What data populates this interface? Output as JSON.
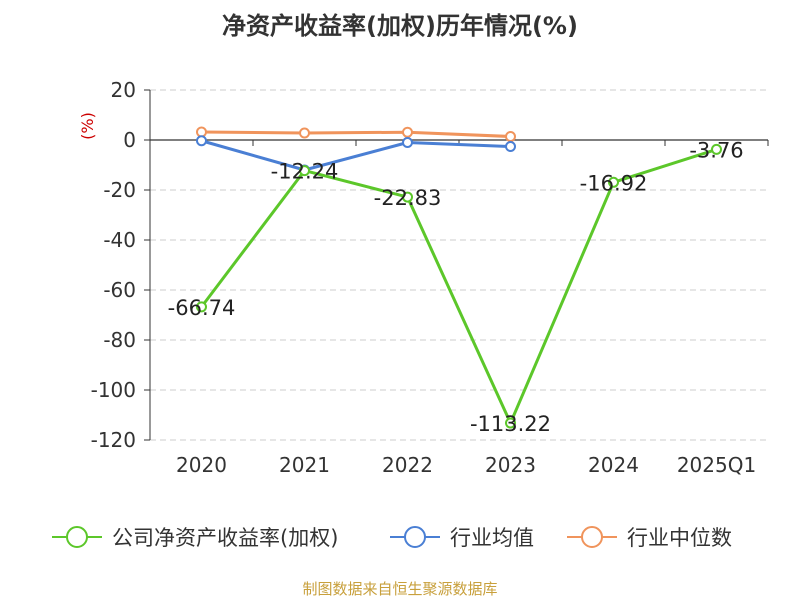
{
  "chart_data": {
    "type": "line",
    "title": "净资产收益率(加权)历年情况(%)",
    "ylabel": "(%)",
    "categories": [
      "2020",
      "2021",
      "2022",
      "2023",
      "2024",
      "2025Q1"
    ],
    "ylim": [
      -120,
      20
    ],
    "yticks": [
      20,
      0,
      -20,
      -40,
      -60,
      -80,
      -100,
      -120
    ],
    "grid": true,
    "legend_position": "bottom",
    "series": [
      {
        "name": "公司净资产收益率(加权)",
        "color": "#5cc72a",
        "values": [
          -66.74,
          -12.24,
          -22.83,
          -113.22,
          -16.92,
          -3.76
        ],
        "labels": [
          "-66.74",
          "-12.24",
          "-22.83",
          "-113.22",
          "-16.92",
          "-3.76"
        ]
      },
      {
        "name": "行业均值",
        "color": "#4a7fd4",
        "values": [
          -0.3,
          -12.0,
          -1.0,
          -2.6,
          null,
          null
        ]
      },
      {
        "name": "行业中位数",
        "color": "#f0945c",
        "values": [
          3.2,
          2.8,
          3.1,
          1.4,
          null,
          null
        ]
      }
    ]
  },
  "watermark": "制图数据来自恒生聚源数据库"
}
